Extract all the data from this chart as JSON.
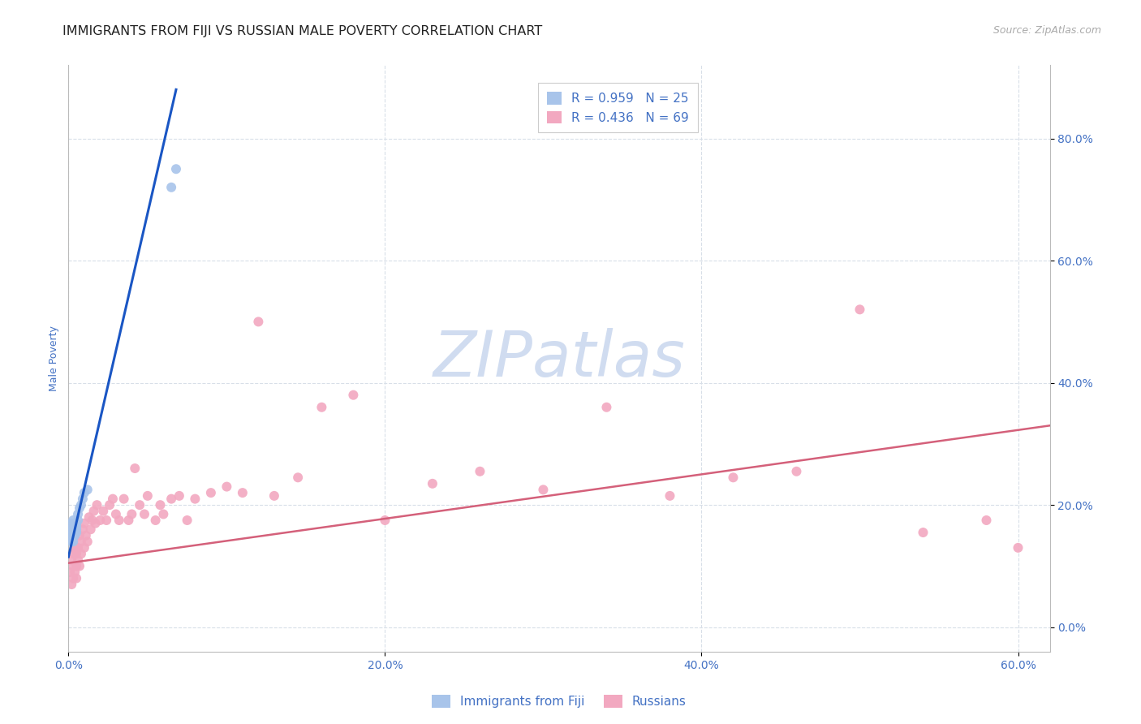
{
  "title": "IMMIGRANTS FROM FIJI VS RUSSIAN MALE POVERTY CORRELATION CHART",
  "source": "Source: ZipAtlas.com",
  "ylabel_label": "Male Poverty",
  "xlim": [
    0.0,
    0.62
  ],
  "ylim": [
    -0.04,
    0.92
  ],
  "fiji_R": "R = 0.959",
  "fiji_N": "N = 25",
  "russian_R": "R = 0.436",
  "russian_N": "N = 69",
  "fiji_color": "#a8c4ea",
  "fiji_line_color": "#1a56c4",
  "russian_color": "#f2a8c0",
  "russian_line_color": "#d4607a",
  "watermark_line1": "ZIP",
  "watermark_line2": "atlas",
  "watermark_color": "#d0dcf0",
  "fiji_scatter_x": [
    0.001,
    0.001,
    0.002,
    0.002,
    0.002,
    0.003,
    0.003,
    0.003,
    0.003,
    0.004,
    0.004,
    0.004,
    0.005,
    0.005,
    0.005,
    0.005,
    0.006,
    0.006,
    0.007,
    0.008,
    0.009,
    0.01,
    0.012,
    0.065,
    0.068
  ],
  "fiji_scatter_y": [
    0.145,
    0.155,
    0.14,
    0.16,
    0.17,
    0.14,
    0.155,
    0.165,
    0.175,
    0.155,
    0.165,
    0.15,
    0.16,
    0.17,
    0.155,
    0.165,
    0.175,
    0.185,
    0.195,
    0.2,
    0.21,
    0.22,
    0.225,
    0.72,
    0.75
  ],
  "russian_scatter_x": [
    0.001,
    0.002,
    0.002,
    0.003,
    0.003,
    0.003,
    0.004,
    0.004,
    0.005,
    0.005,
    0.005,
    0.006,
    0.006,
    0.007,
    0.007,
    0.008,
    0.008,
    0.009,
    0.01,
    0.01,
    0.011,
    0.012,
    0.013,
    0.014,
    0.015,
    0.016,
    0.017,
    0.018,
    0.02,
    0.022,
    0.024,
    0.026,
    0.028,
    0.03,
    0.032,
    0.035,
    0.038,
    0.04,
    0.042,
    0.045,
    0.048,
    0.05,
    0.055,
    0.058,
    0.06,
    0.065,
    0.07,
    0.075,
    0.08,
    0.09,
    0.1,
    0.11,
    0.12,
    0.13,
    0.145,
    0.16,
    0.18,
    0.2,
    0.23,
    0.26,
    0.3,
    0.34,
    0.38,
    0.42,
    0.46,
    0.5,
    0.54,
    0.58,
    0.6
  ],
  "russian_scatter_y": [
    0.09,
    0.07,
    0.11,
    0.08,
    0.1,
    0.12,
    0.09,
    0.13,
    0.1,
    0.08,
    0.12,
    0.11,
    0.13,
    0.1,
    0.15,
    0.12,
    0.14,
    0.16,
    0.13,
    0.17,
    0.15,
    0.14,
    0.18,
    0.16,
    0.175,
    0.19,
    0.17,
    0.2,
    0.175,
    0.19,
    0.175,
    0.2,
    0.21,
    0.185,
    0.175,
    0.21,
    0.175,
    0.185,
    0.26,
    0.2,
    0.185,
    0.215,
    0.175,
    0.2,
    0.185,
    0.21,
    0.215,
    0.175,
    0.21,
    0.22,
    0.23,
    0.22,
    0.5,
    0.215,
    0.245,
    0.36,
    0.38,
    0.175,
    0.235,
    0.255,
    0.225,
    0.36,
    0.215,
    0.245,
    0.255,
    0.52,
    0.155,
    0.175,
    0.13
  ],
  "fiji_line_x": [
    0.0,
    0.068
  ],
  "fiji_line_y": [
    0.115,
    0.88
  ],
  "russian_line_x": [
    0.0,
    0.62
  ],
  "russian_line_y": [
    0.105,
    0.33
  ],
  "bg_color": "#ffffff",
  "axis_label_color": "#4472c4",
  "tick_label_color": "#4472c4",
  "grid_color": "#d8dfe8",
  "title_fontsize": 11.5,
  "source_fontsize": 9,
  "axis_fontsize": 9,
  "tick_fontsize": 10,
  "legend_fontsize": 11,
  "scatter_size": 75,
  "x_ticks": [
    0.0,
    0.2,
    0.4,
    0.6
  ],
  "y_ticks": [
    0.0,
    0.2,
    0.4,
    0.6,
    0.8
  ]
}
